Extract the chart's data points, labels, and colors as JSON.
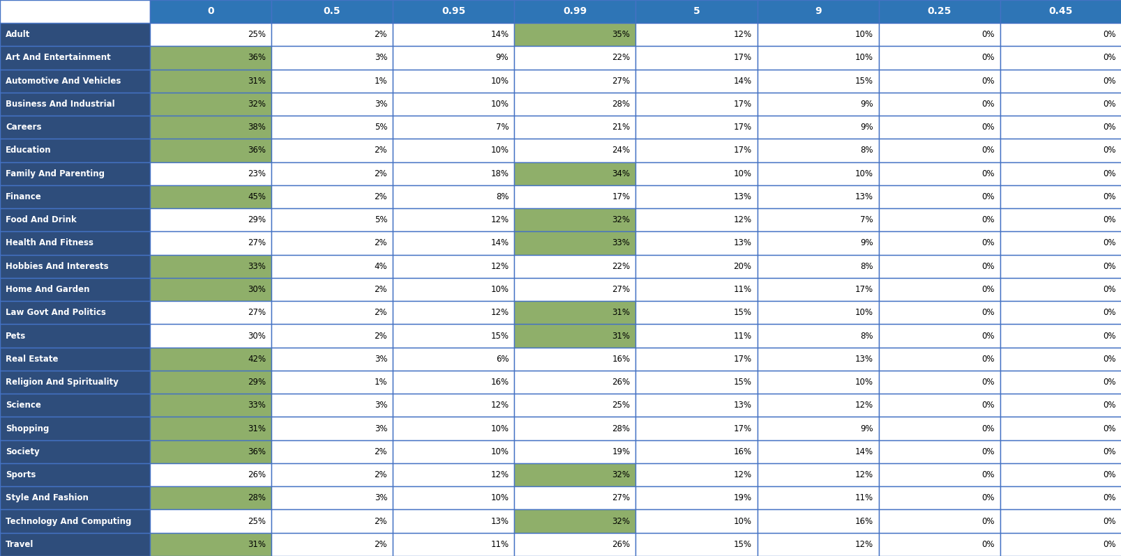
{
  "columns": [
    "",
    "0",
    "0.5",
    "0.95",
    "0.99",
    "5",
    "9",
    "0.25",
    "0.45"
  ],
  "rows": [
    {
      "category": "Adult",
      "values": [
        "25%",
        "2%",
        "14%",
        "35%",
        "12%",
        "10%",
        "0%",
        "0%"
      ],
      "highlight_col": 3,
      "row_highlight": false
    },
    {
      "category": "Art And Entertainment",
      "values": [
        "36%",
        "3%",
        "9%",
        "22%",
        "17%",
        "10%",
        "0%",
        "0%"
      ],
      "highlight_col": 0,
      "row_highlight": true
    },
    {
      "category": "Automotive And Vehicles",
      "values": [
        "31%",
        "1%",
        "10%",
        "27%",
        "14%",
        "15%",
        "0%",
        "0%"
      ],
      "highlight_col": 0,
      "row_highlight": true
    },
    {
      "category": "Business And Industrial",
      "values": [
        "32%",
        "3%",
        "10%",
        "28%",
        "17%",
        "9%",
        "0%",
        "0%"
      ],
      "highlight_col": 0,
      "row_highlight": true
    },
    {
      "category": "Careers",
      "values": [
        "38%",
        "5%",
        "7%",
        "21%",
        "17%",
        "9%",
        "0%",
        "0%"
      ],
      "highlight_col": 0,
      "row_highlight": true
    },
    {
      "category": "Education",
      "values": [
        "36%",
        "2%",
        "10%",
        "24%",
        "17%",
        "8%",
        "0%",
        "0%"
      ],
      "highlight_col": 0,
      "row_highlight": true
    },
    {
      "category": "Family And Parenting",
      "values": [
        "23%",
        "2%",
        "18%",
        "34%",
        "10%",
        "10%",
        "0%",
        "0%"
      ],
      "highlight_col": 3,
      "row_highlight": false
    },
    {
      "category": "Finance",
      "values": [
        "45%",
        "2%",
        "8%",
        "17%",
        "13%",
        "13%",
        "0%",
        "0%"
      ],
      "highlight_col": 0,
      "row_highlight": true
    },
    {
      "category": "Food And Drink",
      "values": [
        "29%",
        "5%",
        "12%",
        "32%",
        "12%",
        "7%",
        "0%",
        "0%"
      ],
      "highlight_col": 3,
      "row_highlight": false
    },
    {
      "category": "Health And Fitness",
      "values": [
        "27%",
        "2%",
        "14%",
        "33%",
        "13%",
        "9%",
        "0%",
        "0%"
      ],
      "highlight_col": 3,
      "row_highlight": false
    },
    {
      "category": "Hobbies And Interests",
      "values": [
        "33%",
        "4%",
        "12%",
        "22%",
        "20%",
        "8%",
        "0%",
        "0%"
      ],
      "highlight_col": 0,
      "row_highlight": true
    },
    {
      "category": "Home And Garden",
      "values": [
        "30%",
        "2%",
        "10%",
        "27%",
        "11%",
        "17%",
        "0%",
        "0%"
      ],
      "highlight_col": 0,
      "row_highlight": true
    },
    {
      "category": "Law Govt And Politics",
      "values": [
        "27%",
        "2%",
        "12%",
        "31%",
        "15%",
        "10%",
        "0%",
        "0%"
      ],
      "highlight_col": 3,
      "row_highlight": false
    },
    {
      "category": "Pets",
      "values": [
        "30%",
        "2%",
        "15%",
        "31%",
        "11%",
        "8%",
        "0%",
        "0%"
      ],
      "highlight_col": 3,
      "row_highlight": false
    },
    {
      "category": "Real Estate",
      "values": [
        "42%",
        "3%",
        "6%",
        "16%",
        "17%",
        "13%",
        "0%",
        "0%"
      ],
      "highlight_col": 0,
      "row_highlight": true
    },
    {
      "category": "Religion And Spirituality",
      "values": [
        "29%",
        "1%",
        "16%",
        "26%",
        "15%",
        "10%",
        "0%",
        "0%"
      ],
      "highlight_col": 0,
      "row_highlight": true
    },
    {
      "category": "Science",
      "values": [
        "33%",
        "3%",
        "12%",
        "25%",
        "13%",
        "12%",
        "0%",
        "0%"
      ],
      "highlight_col": 0,
      "row_highlight": true
    },
    {
      "category": "Shopping",
      "values": [
        "31%",
        "3%",
        "10%",
        "28%",
        "17%",
        "9%",
        "0%",
        "0%"
      ],
      "highlight_col": 0,
      "row_highlight": true
    },
    {
      "category": "Society",
      "values": [
        "36%",
        "2%",
        "10%",
        "19%",
        "16%",
        "14%",
        "0%",
        "0%"
      ],
      "highlight_col": 0,
      "row_highlight": true
    },
    {
      "category": "Sports",
      "values": [
        "26%",
        "2%",
        "12%",
        "32%",
        "12%",
        "12%",
        "0%",
        "0%"
      ],
      "highlight_col": 3,
      "row_highlight": false
    },
    {
      "category": "Style And Fashion",
      "values": [
        "28%",
        "3%",
        "10%",
        "27%",
        "19%",
        "11%",
        "0%",
        "0%"
      ],
      "highlight_col": 0,
      "row_highlight": true
    },
    {
      "category": "Technology And Computing",
      "values": [
        "25%",
        "2%",
        "13%",
        "32%",
        "10%",
        "16%",
        "0%",
        "0%"
      ],
      "highlight_col": 3,
      "row_highlight": false
    },
    {
      "category": "Travel",
      "values": [
        "31%",
        "2%",
        "11%",
        "26%",
        "15%",
        "12%",
        "0%",
        "0%"
      ],
      "highlight_col": 0,
      "row_highlight": true
    }
  ],
  "header_bg": "#2E75B6",
  "header_text": "#FFFFFF",
  "row_label_bg": "#2E4D7B",
  "row_label_text": "#FFFFFF",
  "cell_bg_white": "#FFFFFF",
  "cell_bg_green": "#8FAF6A",
  "border_color": "#4472C4",
  "fig_width": 16.08,
  "fig_height": 7.98,
  "dpi": 100
}
